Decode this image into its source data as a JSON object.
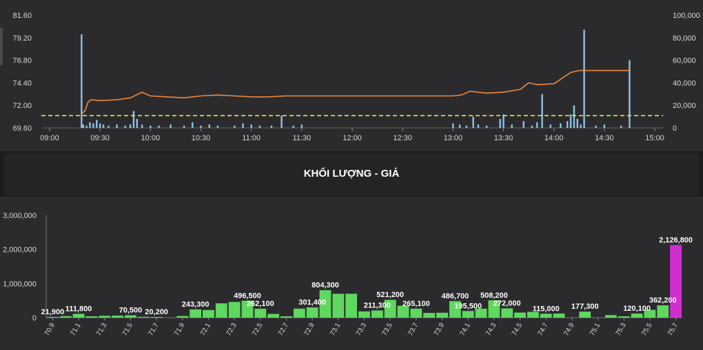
{
  "top_chart": {
    "price_ticks": [
      "81.60",
      "79.20",
      "76.80",
      "74.40",
      "72.00",
      "69.60"
    ],
    "volume_ticks": [
      "100,000",
      "80,000",
      "60,000",
      "40,000",
      "20,000",
      "0"
    ],
    "time_ticks": [
      "09:00",
      "09:30",
      "10:00",
      "10:30",
      "11:00",
      "11:30",
      "12:00",
      "12:30",
      "13:00",
      "13:30",
      "14:00",
      "14:30",
      "15:00"
    ],
    "reference_price": 70.9,
    "colors": {
      "price_line": "#f08a3c",
      "volume_bars": "#8ec3e8",
      "reference": "#e8e83a"
    }
  },
  "section_title": "KHỐI LƯỢNG - GIÁ",
  "chart_data": [
    {
      "type": "line",
      "title": "",
      "xlabel": "",
      "ylabel": "",
      "x_range": [
        "09:00",
        "15:00"
      ],
      "ylim": [
        69.6,
        81.6
      ],
      "y2lim": [
        0,
        100000
      ],
      "price_series": [
        [
          "09:19",
          71.1
        ],
        [
          "09:21",
          71.4
        ],
        [
          "09:23",
          72.4
        ],
        [
          "09:25",
          72.6
        ],
        [
          "09:30",
          72.5
        ],
        [
          "09:40",
          72.6
        ],
        [
          "09:48",
          72.8
        ],
        [
          "09:55",
          73.4
        ],
        [
          "10:00",
          73.0
        ],
        [
          "10:10",
          72.9
        ],
        [
          "10:20",
          72.8
        ],
        [
          "10:30",
          73.0
        ],
        [
          "10:40",
          73.1
        ],
        [
          "10:50",
          73.0
        ],
        [
          "11:00",
          72.9
        ],
        [
          "11:10",
          72.9
        ],
        [
          "11:20",
          73.0
        ],
        [
          "11:30",
          73.0
        ],
        [
          "12:00",
          73.0
        ],
        [
          "12:30",
          73.0
        ],
        [
          "13:00",
          73.0
        ],
        [
          "13:05",
          73.1
        ],
        [
          "13:10",
          73.5
        ],
        [
          "13:20",
          73.3
        ],
        [
          "13:30",
          73.4
        ],
        [
          "13:40",
          73.7
        ],
        [
          "13:45",
          74.4
        ],
        [
          "13:50",
          74.2
        ],
        [
          "14:00",
          74.3
        ],
        [
          "14:05",
          74.9
        ],
        [
          "14:10",
          75.5
        ],
        [
          "14:15",
          75.7
        ],
        [
          "14:45",
          75.7
        ]
      ],
      "volume_series": [
        [
          "09:19",
          83000
        ],
        [
          "09:20",
          3000
        ],
        [
          "09:22",
          2000
        ],
        [
          "09:24",
          5000
        ],
        [
          "09:26",
          4000
        ],
        [
          "09:28",
          7000
        ],
        [
          "09:30",
          4000
        ],
        [
          "09:32",
          3000
        ],
        [
          "09:35",
          2000
        ],
        [
          "09:40",
          3000
        ],
        [
          "09:45",
          2000
        ],
        [
          "09:48",
          3000
        ],
        [
          "09:50",
          15000
        ],
        [
          "09:52",
          8000
        ],
        [
          "09:55",
          3000
        ],
        [
          "10:00",
          2000
        ],
        [
          "10:05",
          2000
        ],
        [
          "10:12",
          3000
        ],
        [
          "10:20",
          2000
        ],
        [
          "10:25",
          5000
        ],
        [
          "10:30",
          2000
        ],
        [
          "10:35",
          3000
        ],
        [
          "10:40",
          2000
        ],
        [
          "10:50",
          2000
        ],
        [
          "10:55",
          4000
        ],
        [
          "11:00",
          3000
        ],
        [
          "11:05",
          2000
        ],
        [
          "11:12",
          2000
        ],
        [
          "11:18",
          11000
        ],
        [
          "11:25",
          2000
        ],
        [
          "11:30",
          3000
        ],
        [
          "13:00",
          4000
        ],
        [
          "13:04",
          3000
        ],
        [
          "13:08",
          2000
        ],
        [
          "13:12",
          10000
        ],
        [
          "13:15",
          3000
        ],
        [
          "13:20",
          2000
        ],
        [
          "13:28",
          8000
        ],
        [
          "13:30",
          12000
        ],
        [
          "13:35",
          3000
        ],
        [
          "13:42",
          6000
        ],
        [
          "13:47",
          2000
        ],
        [
          "13:50",
          5000
        ],
        [
          "13:53",
          30000
        ],
        [
          "13:58",
          3000
        ],
        [
          "14:04",
          4000
        ],
        [
          "14:08",
          6000
        ],
        [
          "14:10",
          12000
        ],
        [
          "14:12",
          20000
        ],
        [
          "14:14",
          8000
        ],
        [
          "14:16",
          3000
        ],
        [
          "14:18",
          87000
        ],
        [
          "14:25",
          2000
        ],
        [
          "14:30",
          3000
        ],
        [
          "14:40",
          2000
        ],
        [
          "14:45",
          60000
        ]
      ]
    },
    {
      "type": "bar",
      "title": "KHỐI LƯỢNG - GIÁ",
      "xlabel": "",
      "ylabel": "",
      "ylim": [
        0,
        3000000
      ],
      "y_ticks": [
        "3,000,000",
        "2,000,000",
        "1,000,000",
        "0"
      ],
      "tick_labels": [
        "70.9",
        "71.1",
        "71.3",
        "71.5",
        "71.7",
        "71.9",
        "72.1",
        "72.3",
        "72.5",
        "72.7",
        "72.9",
        "73.1",
        "73.3",
        "73.5",
        "73.7",
        "73.9",
        "74.1",
        "74.3",
        "74.5",
        "74.7",
        "74.9",
        "75.1",
        "75.3",
        "75.5",
        "75.7"
      ],
      "categories": [
        "70.9",
        "71",
        "71.1",
        "71.2",
        "71.3",
        "71.4",
        "71.5",
        "71.6",
        "71.7",
        "71.8",
        "71.9",
        "72",
        "72.1",
        "72.2",
        "72.3",
        "72.4",
        "72.5",
        "72.6",
        "72.7",
        "72.8",
        "72.9",
        "73",
        "73.1",
        "73.2",
        "73.3",
        "73.4",
        "73.5",
        "73.6",
        "73.7",
        "73.8",
        "73.9",
        "74",
        "74.1",
        "74.2",
        "74.3",
        "74.4",
        "74.5",
        "74.6",
        "74.7",
        "74.8",
        "74.9",
        "75",
        "75.1",
        "75.2",
        "75.3",
        "75.4",
        "75.5",
        "75.6",
        "75.7"
      ],
      "values": [
        21900,
        45000,
        111800,
        40000,
        55000,
        60000,
        70500,
        25000,
        20200,
        0,
        50000,
        243300,
        225000,
        420000,
        460000,
        496500,
        262100,
        110000,
        40000,
        265000,
        301400,
        804300,
        700000,
        700000,
        185000,
        211300,
        521200,
        350000,
        265100,
        140000,
        145000,
        486700,
        195500,
        265000,
        508200,
        272000,
        150000,
        170000,
        115000,
        120000,
        0,
        177300,
        0,
        75000,
        40000,
        120100,
        230000,
        362200,
        2126800
      ],
      "data_labels": [
        {
          "i": 0,
          "text": "21,900"
        },
        {
          "i": 2,
          "text": "111,800"
        },
        {
          "i": 6,
          "text": "70,500"
        },
        {
          "i": 8,
          "text": "20,200"
        },
        {
          "i": 11,
          "text": "243,300"
        },
        {
          "i": 15,
          "text": "496,500"
        },
        {
          "i": 16,
          "text": "262,100"
        },
        {
          "i": 20,
          "text": "301,400"
        },
        {
          "i": 21,
          "text": "804,300"
        },
        {
          "i": 25,
          "text": "211,300"
        },
        {
          "i": 26,
          "text": "521,200"
        },
        {
          "i": 28,
          "text": "265,100"
        },
        {
          "i": 31,
          "text": "486,700"
        },
        {
          "i": 32,
          "text": "195,500"
        },
        {
          "i": 34,
          "text": "508,200"
        },
        {
          "i": 35,
          "text": "272,000"
        },
        {
          "i": 38,
          "text": "115,000"
        },
        {
          "i": 41,
          "text": "177,300"
        },
        {
          "i": 45,
          "text": "120,100"
        },
        {
          "i": 47,
          "text": "362,200"
        },
        {
          "i": 48,
          "text": "2,126,800"
        }
      ],
      "colors": {
        "bar": "#5ed85e",
        "highlight": "#d02ed0"
      }
    }
  ]
}
